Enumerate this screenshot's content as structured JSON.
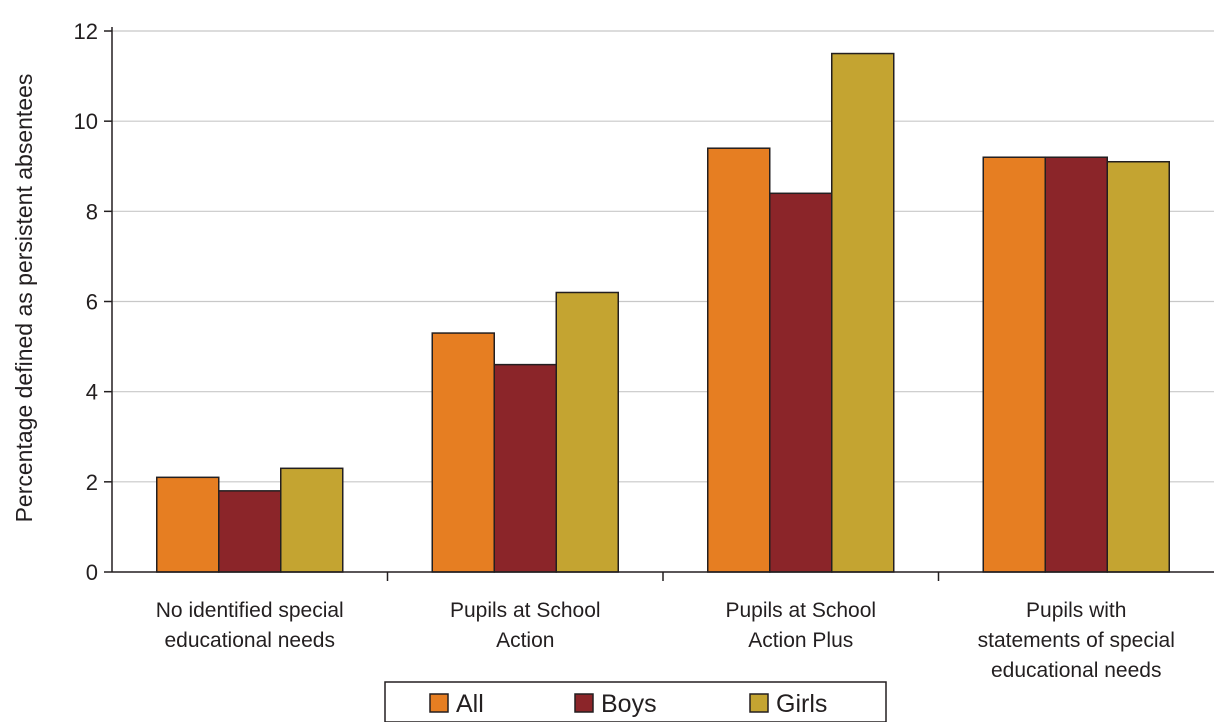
{
  "chart_data": {
    "type": "bar",
    "categories": [
      [
        "No identified special",
        "educational needs"
      ],
      [
        "Pupils at School",
        "Action"
      ],
      [
        "Pupils at School",
        "Action Plus"
      ],
      [
        "Pupils with",
        "statements of special",
        "educational needs"
      ]
    ],
    "series": [
      {
        "name": "All",
        "color": "#e67e22",
        "values": [
          2.1,
          5.3,
          9.4,
          9.2
        ]
      },
      {
        "name": "Boys",
        "color": "#8b2529",
        "values": [
          1.8,
          4.6,
          8.4,
          9.2
        ]
      },
      {
        "name": "Girls",
        "color": "#c4a431",
        "values": [
          2.3,
          6.2,
          11.5,
          9.1
        ]
      }
    ],
    "title": "",
    "xlabel": "",
    "ylabel": "Percentage defined as persistent absentees",
    "ylim": [
      0,
      12
    ],
    "yticks": [
      0,
      2,
      4,
      6,
      8,
      10,
      12
    ],
    "grid": true,
    "legend_position": "bottom"
  }
}
